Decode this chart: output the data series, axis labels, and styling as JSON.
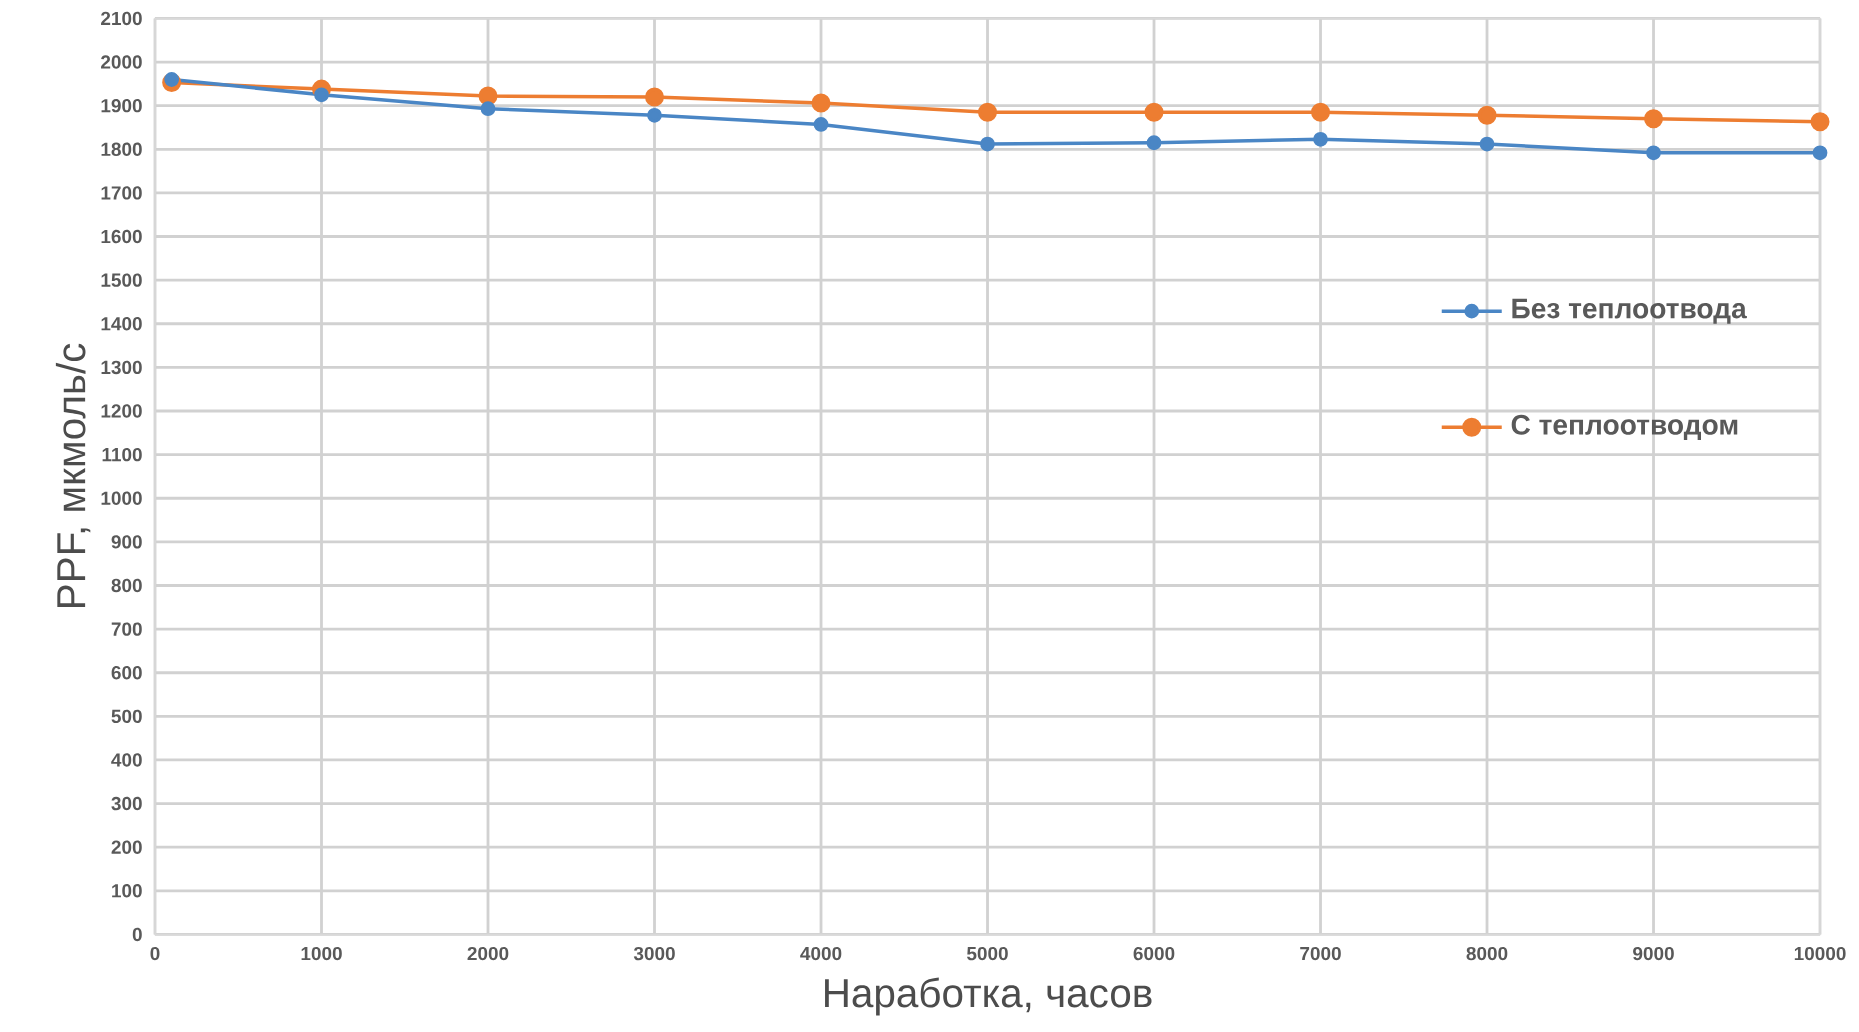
{
  "chart_data": {
    "type": "line",
    "xlabel": "Наработка, часов",
    "ylabel": "PPF, мкмоль/с",
    "x": [
      100,
      1000,
      2000,
      3000,
      4000,
      5000,
      6000,
      7000,
      8000,
      9000,
      10000
    ],
    "series": [
      {
        "name": "Без теплоотвода",
        "color": "#4a86c5",
        "values": [
          1960,
          1925,
          1893,
          1878,
          1857,
          1812,
          1815,
          1823,
          1812,
          1792,
          1792
        ]
      },
      {
        "name": "С теплоотводом",
        "color": "#ed7d31",
        "values": [
          1953,
          1938,
          1922,
          1920,
          1906,
          1885,
          1885,
          1885,
          1878,
          1870,
          1863
        ]
      }
    ],
    "xlim": [
      0,
      10000
    ],
    "ylim": [
      0,
      2100
    ],
    "xticks": [
      0,
      1000,
      2000,
      3000,
      4000,
      5000,
      6000,
      7000,
      8000,
      9000,
      10000
    ],
    "yticks": [
      0,
      100,
      200,
      300,
      400,
      500,
      600,
      700,
      800,
      900,
      1000,
      1100,
      1200,
      1300,
      1400,
      1500,
      1600,
      1700,
      1800,
      1900,
      2000,
      2100
    ],
    "grid": true,
    "legend": "right",
    "marker": "circle",
    "line_style": "solid"
  }
}
